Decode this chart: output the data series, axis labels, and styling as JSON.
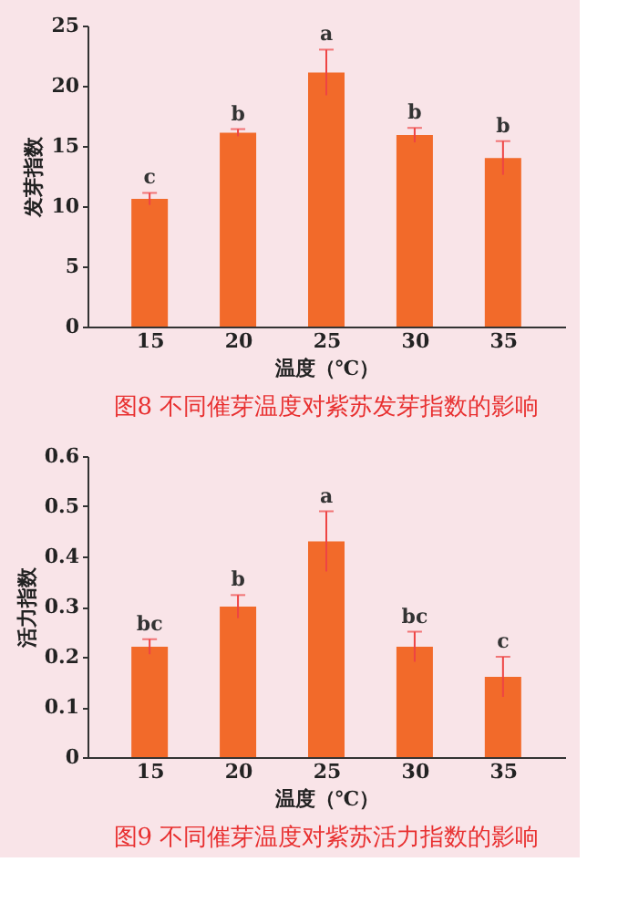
{
  "chart_data": [
    {
      "type": "bar",
      "title": "图8  不同催芽温度对紫苏发芽指数的影响",
      "xlabel": "温度（℃）",
      "ylabel": "发芽指数",
      "categories": [
        "15",
        "20",
        "25",
        "30",
        "35"
      ],
      "values": [
        10.6,
        16.1,
        21.1,
        15.9,
        14.0
      ],
      "errors": [
        0.5,
        0.3,
        1.9,
        0.6,
        1.4
      ],
      "color": "#f26a2a",
      "ylim": [
        0,
        25
      ],
      "yticks": [
        0,
        5,
        10,
        15,
        20,
        25
      ],
      "grid": false,
      "annotations": [
        {
          "text": "c",
          "x": "15",
          "y": 11.1
        },
        {
          "text": "b",
          "x": "20",
          "y": 16.4
        },
        {
          "text": "a",
          "x": "25",
          "y": 23.0
        },
        {
          "text": "b",
          "x": "30",
          "y": 16.5
        },
        {
          "text": "b",
          "x": "35",
          "y": 15.4
        }
      ]
    },
    {
      "type": "bar",
      "title": "图9  不同催芽温度对紫苏活力指数的影响",
      "xlabel": "温度（℃）",
      "ylabel": "活力指数",
      "categories": [
        "15",
        "20",
        "25",
        "30",
        "35"
      ],
      "values": [
        0.22,
        0.3,
        0.43,
        0.22,
        0.16
      ],
      "errors": [
        0.015,
        0.023,
        0.06,
        0.03,
        0.04
      ],
      "color": "#f26a2a",
      "ylim": [
        0,
        0.6
      ],
      "yticks": [
        0,
        0.1,
        0.2,
        0.3,
        0.4,
        0.5,
        0.6
      ],
      "grid": false,
      "annotations": [
        {
          "text": "bc",
          "x": "15",
          "y": 0.235
        },
        {
          "text": "b",
          "x": "20",
          "y": 0.323
        },
        {
          "text": "a",
          "x": "25",
          "y": 0.49
        },
        {
          "text": "bc",
          "x": "30",
          "y": 0.25
        },
        {
          "text": "c",
          "x": "35",
          "y": 0.2
        }
      ]
    }
  ]
}
